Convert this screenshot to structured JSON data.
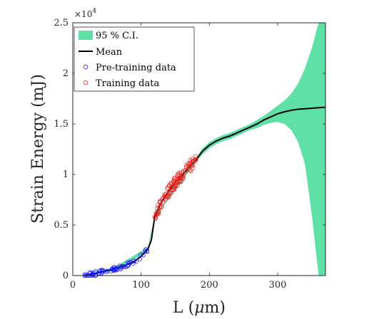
{
  "chart_data": {
    "type": "scatter",
    "title": "",
    "xlabel_main": "L (",
    "xlabel_mu": "μ",
    "xlabel_tail": "m)",
    "ylabel": "Strain Energy (mJ)",
    "xlim": [
      0,
      370
    ],
    "ylim": [
      0,
      25000
    ],
    "x_ticks": [
      0,
      100,
      200,
      300
    ],
    "y_ticks": [
      0,
      5000,
      10000,
      15000,
      20000,
      25000
    ],
    "y_tick_labels": [
      "0",
      "0.5",
      "1",
      "1.5",
      "2",
      "2.5"
    ],
    "y_exponent_base": "×10",
    "y_exponent_power": "4",
    "legend_position": "top-left",
    "colors": {
      "ci": "#5fe0a6",
      "mean": "#000000",
      "pretraining": "#1a1aff",
      "training": "#e8231e"
    },
    "legend": [
      {
        "label": "95 % C.I.",
        "kind": "fill",
        "color": "#5fe0a6"
      },
      {
        "label": "Mean",
        "kind": "line",
        "color": "#000000"
      },
      {
        "label": "Pre-training data",
        "kind": "marker",
        "color": "#1a1aff"
      },
      {
        "label": "Training data",
        "kind": "marker",
        "color": "#e8231e"
      }
    ],
    "series": [
      {
        "name": "Mean",
        "type": "line",
        "x": [
          17,
          30,
          45,
          60,
          75,
          90,
          100,
          110,
          115,
          120,
          130,
          140,
          150,
          160,
          170,
          180,
          190,
          200,
          210,
          220,
          230,
          240,
          250,
          260,
          270,
          280,
          290,
          300,
          310,
          320,
          330,
          340,
          350,
          360,
          370
        ],
        "y": [
          0,
          150,
          400,
          650,
          950,
          1400,
          1900,
          2600,
          3500,
          5800,
          7300,
          8300,
          9200,
          9900,
          10700,
          11400,
          12300,
          12900,
          13300,
          13600,
          13800,
          14100,
          14400,
          14700,
          15000,
          15400,
          15700,
          16000,
          16200,
          16350,
          16450,
          16500,
          16550,
          16600,
          16650
        ]
      },
      {
        "name": "95 % C.I.",
        "type": "band",
        "x": [
          17,
          60,
          110,
          120,
          180,
          190,
          200,
          210,
          220,
          230,
          240,
          250,
          260,
          270,
          280,
          290,
          300,
          310,
          320,
          330,
          340,
          350,
          360,
          370
        ],
        "upper": [
          100,
          800,
          2800,
          5900,
          11600,
          12600,
          13200,
          13600,
          13900,
          14100,
          14400,
          14700,
          15000,
          15400,
          15800,
          16300,
          16800,
          17300,
          18000,
          19000,
          20500,
          22500,
          25000,
          25000
        ],
        "lower": [
          -100,
          500,
          2400,
          5700,
          11200,
          12000,
          12600,
          13000,
          13300,
          13500,
          13800,
          14100,
          14400,
          14600,
          14900,
          15100,
          15200,
          15000,
          14400,
          13200,
          11000,
          6000,
          0,
          0
        ]
      }
    ],
    "scatter_segments": [
      {
        "name": "Pre-training data",
        "x_start": 17,
        "x_end": 113,
        "count": 70,
        "spread": 200,
        "curve_x": [
          17,
          30,
          45,
          60,
          75,
          90,
          100,
          110,
          113
        ],
        "curve_y": [
          0,
          150,
          400,
          650,
          950,
          1400,
          1900,
          2600,
          2900
        ]
      },
      {
        "name": "Training data",
        "x_start": 120,
        "x_end": 182,
        "count": 110,
        "spread": 550,
        "curve_x": [
          120,
          130,
          140,
          150,
          160,
          170,
          180,
          182
        ],
        "curve_y": [
          5800,
          7300,
          8300,
          9200,
          9900,
          10700,
          11400,
          11600
        ]
      }
    ]
  }
}
